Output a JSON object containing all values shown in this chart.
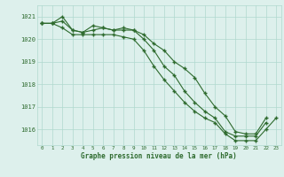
{
  "x": [
    0,
    1,
    2,
    3,
    4,
    5,
    6,
    7,
    8,
    9,
    10,
    11,
    12,
    13,
    14,
    15,
    16,
    17,
    18,
    19,
    20,
    21,
    22,
    23
  ],
  "series1": [
    1020.7,
    1020.7,
    1021.0,
    1020.4,
    1020.3,
    1020.6,
    1020.5,
    1020.4,
    1020.5,
    1020.4,
    1020.2,
    1019.8,
    1019.5,
    1019.0,
    1018.7,
    1018.3,
    1017.6,
    1017.0,
    1016.6,
    1015.9,
    1015.8,
    1015.8,
    1016.5,
    null
  ],
  "series2": [
    1020.7,
    1020.7,
    1020.8,
    1020.4,
    1020.3,
    1020.4,
    1020.5,
    1020.4,
    1020.4,
    1020.4,
    1020.0,
    1019.5,
    1018.8,
    1018.4,
    1017.7,
    1017.2,
    1016.8,
    1016.5,
    1015.9,
    1015.7,
    1015.7,
    1015.7,
    1016.3,
    null
  ],
  "series3": [
    1020.7,
    1020.7,
    1020.5,
    1020.2,
    1020.2,
    1020.2,
    1020.2,
    1020.2,
    1020.1,
    1020.0,
    1019.5,
    1018.8,
    1018.2,
    1017.7,
    1017.2,
    1016.8,
    1016.5,
    1016.3,
    1015.8,
    1015.5,
    1015.5,
    1015.5,
    1016.0,
    1016.5
  ],
  "ylim_min": 1015.3,
  "ylim_max": 1021.5,
  "yticks": [
    1016,
    1017,
    1018,
    1019,
    1020,
    1021
  ],
  "xticks": [
    0,
    1,
    2,
    3,
    4,
    5,
    6,
    7,
    8,
    9,
    10,
    11,
    12,
    13,
    14,
    15,
    16,
    17,
    18,
    19,
    20,
    21,
    22,
    23
  ],
  "xlabel": "Graphe pression niveau de la mer (hPa)",
  "line_color": "#2d6a2d",
  "bg_color": "#ddf0ec",
  "grid_color": "#b0d8ce",
  "marker": "+",
  "linewidth": 0.8,
  "markersize": 3.5,
  "markeredgewidth": 1.0
}
